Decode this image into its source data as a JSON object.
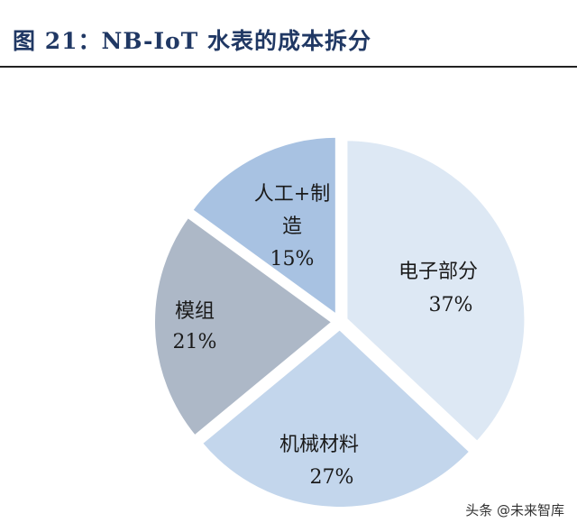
{
  "figure": {
    "title": "图 21：NB-IoT 水表的成本拆分",
    "watermark": "头条 @未来智库"
  },
  "chart_data": {
    "type": "pie",
    "legend": "none",
    "slices": [
      {
        "label_lines": [
          "电子部分"
        ],
        "percent_text": "37%",
        "value": 37,
        "color": "#dde8f4"
      },
      {
        "label_lines": [
          "机械材料"
        ],
        "percent_text": "27%",
        "value": 27,
        "color": "#c3d6ec"
      },
      {
        "label_lines": [
          "模组"
        ],
        "percent_text": "21%",
        "value": 21,
        "color": "#adb8c7"
      },
      {
        "label_lines": [
          "人工+制",
          "造"
        ],
        "percent_text": "15%",
        "value": 15,
        "color": "#a8c2e2"
      }
    ]
  }
}
